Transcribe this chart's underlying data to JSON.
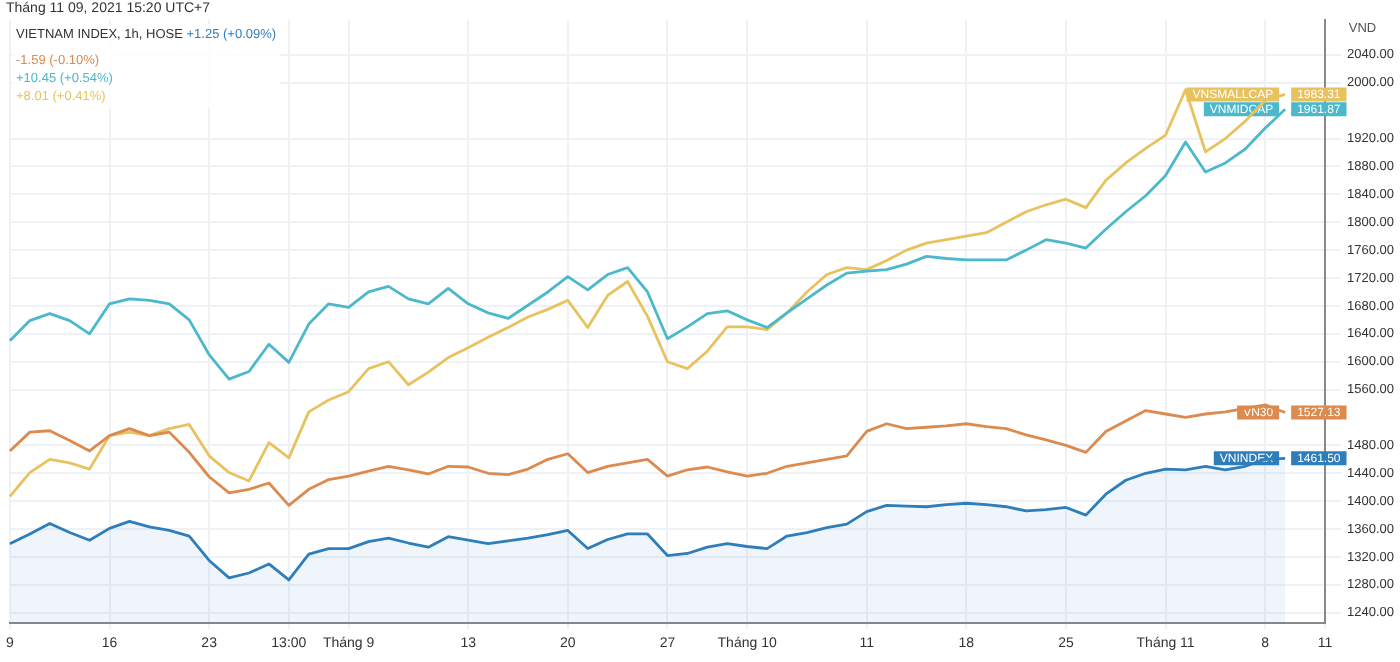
{
  "chart_data": {
    "type": "line",
    "title": "VIETNAM INDEX, 1h, HOSE",
    "ylabel": "VND",
    "annotations": [
      "Tháng 11 09, 2021 15:20 UTC+7",
      "+1.25 (+0.09%)",
      "-1.59 (-0.10%)",
      "+10.45 (+0.54%)",
      "+8.01 (+0.41%)"
    ],
    "categories": [
      "9",
      null,
      null,
      null,
      null,
      "16",
      null,
      null,
      null,
      null,
      "23",
      null,
      null,
      null,
      "13:00",
      null,
      null,
      "Tháng 9",
      null,
      null,
      null,
      null,
      null,
      "13",
      null,
      null,
      null,
      null,
      "20",
      null,
      null,
      null,
      null,
      "27",
      null,
      null,
      null,
      "Tháng 10",
      null,
      null,
      null,
      null,
      null,
      "11",
      null,
      null,
      null,
      null,
      "18",
      null,
      null,
      null,
      null,
      "25",
      null,
      null,
      null,
      null,
      "Tháng 11",
      null,
      null,
      null,
      null,
      "8",
      null,
      null,
      "11"
    ],
    "ylim": [
      1225,
      2090
    ],
    "yticks": [
      {
        "value": 1240,
        "label": "1240.00"
      },
      {
        "value": 1280,
        "label": "1280.00"
      },
      {
        "value": 1320,
        "label": "1320.00"
      },
      {
        "value": 1360,
        "label": "1360.00"
      },
      {
        "value": 1400,
        "label": "1400.00"
      },
      {
        "value": 1440,
        "label": "1440.00"
      },
      {
        "value": 1480,
        "label": "1480.00"
      },
      {
        "value": 1560,
        "label": "1560.00"
      },
      {
        "value": 1600,
        "label": "1600.00"
      },
      {
        "value": 1640,
        "label": "1640.00"
      },
      {
        "value": 1680,
        "label": "1680.00"
      },
      {
        "value": 1720,
        "label": "1720.00"
      },
      {
        "value": 1760,
        "label": "1760.00"
      },
      {
        "value": 1800,
        "label": "1800.00"
      },
      {
        "value": 1840,
        "label": "1840.00"
      },
      {
        "value": 1880,
        "label": "1880.00"
      },
      {
        "value": 1920,
        "label": "1920.00"
      },
      {
        "value": 2000,
        "label": "2000.00"
      },
      {
        "value": 2040,
        "label": "2040.00"
      }
    ],
    "grid": true,
    "legend": "right",
    "marker": "none",
    "line_style": "solid",
    "series": [
      {
        "name": "VNINDEX",
        "type": "area",
        "color": "#2f7ebc",
        "values": [
          1339,
          1353,
          1368,
          1355,
          1344,
          1361,
          1371,
          1363,
          1358,
          1350,
          1315,
          1290,
          1297,
          1310,
          1287,
          1324,
          1332,
          1332,
          1342,
          1347,
          1340,
          1334,
          1349,
          1344,
          1339,
          1343,
          1347,
          1352,
          1358,
          1332,
          1345,
          1353,
          1353,
          1322,
          1325,
          1334,
          1339,
          1335,
          1332,
          1350,
          1355,
          1362,
          1367,
          1385,
          1394,
          1393,
          1392,
          1395,
          1397,
          1395,
          1392,
          1386,
          1388,
          1391,
          1380,
          1410,
          1430,
          1440,
          1446,
          1445,
          1450,
          1445,
          1450,
          1460,
          1461.5,
          null,
          null
        ],
        "value_labels": [
          null,
          null,
          null,
          null,
          null,
          null,
          null,
          null,
          null,
          null,
          null,
          null,
          null,
          null,
          null,
          null,
          null,
          null,
          null,
          null,
          null,
          null,
          null,
          null,
          null,
          null,
          null,
          null,
          null,
          null,
          null,
          null,
          null,
          null,
          null,
          null,
          null,
          null,
          null,
          null,
          null,
          null,
          null,
          null,
          null,
          null,
          null,
          null,
          null,
          null,
          null,
          null,
          null,
          null,
          null,
          null,
          null,
          null,
          null,
          null,
          null,
          null,
          null,
          null,
          "1461.50",
          null,
          null
        ]
      },
      {
        "name": "VN30",
        "color": "#dc8a4e",
        "values": [
          1472,
          1499,
          1501,
          1487,
          1472,
          1494,
          1504,
          1494,
          1499,
          1470,
          1435,
          1412,
          1417,
          1426,
          1394,
          1417,
          1431,
          1436,
          1443,
          1450,
          1445,
          1439,
          1450,
          1449,
          1440,
          1438,
          1446,
          1460,
          1468,
          1441,
          1450,
          1455,
          1460,
          1436,
          1445,
          1449,
          1442,
          1436,
          1440,
          1450,
          1455,
          1460,
          1465,
          1500,
          1511,
          1504,
          1506,
          1508,
          1511,
          1507,
          1504,
          1495,
          1488,
          1480,
          1470,
          1500,
          1515,
          1530,
          1525,
          1520,
          1525,
          1528,
          1533,
          1538,
          1527.13,
          null,
          null
        ],
        "value_labels": [
          null,
          null,
          null,
          null,
          null,
          null,
          null,
          null,
          null,
          null,
          null,
          null,
          null,
          null,
          null,
          null,
          null,
          null,
          null,
          null,
          null,
          null,
          null,
          null,
          null,
          null,
          null,
          null,
          null,
          null,
          null,
          null,
          null,
          null,
          null,
          null,
          null,
          null,
          null,
          null,
          null,
          null,
          null,
          null,
          null,
          null,
          null,
          null,
          null,
          null,
          null,
          null,
          null,
          null,
          null,
          null,
          null,
          null,
          null,
          null,
          null,
          null,
          null,
          null,
          "1527.13",
          null,
          null
        ]
      },
      {
        "name": "VNMIDCAP",
        "color": "#4bb9cb",
        "values": [
          1630,
          1659,
          1669,
          1659,
          1640,
          1683,
          1690,
          1688,
          1683,
          1660,
          1610,
          1575,
          1586,
          1625,
          1599,
          1654,
          1683,
          1678,
          1700,
          1708,
          1690,
          1683,
          1705,
          1683,
          1670,
          1662,
          1681,
          1700,
          1722,
          1703,
          1725,
          1735,
          1700,
          1633,
          1650,
          1669,
          1673,
          1660,
          1649,
          1670,
          1690,
          1710,
          1727,
          1730,
          1732,
          1740,
          1751,
          1748,
          1746,
          1746,
          1746,
          1760,
          1775,
          1770,
          1763,
          1790,
          1815,
          1838,
          1867,
          1915,
          1872,
          1885,
          1905,
          1935,
          1961.87,
          null,
          null
        ],
        "value_labels": [
          null,
          null,
          null,
          null,
          null,
          null,
          null,
          null,
          null,
          null,
          null,
          null,
          null,
          null,
          null,
          null,
          null,
          null,
          null,
          null,
          null,
          null,
          null,
          null,
          null,
          null,
          null,
          null,
          null,
          null,
          null,
          null,
          null,
          null,
          null,
          null,
          null,
          null,
          null,
          null,
          null,
          null,
          null,
          null,
          null,
          null,
          null,
          null,
          null,
          null,
          null,
          null,
          null,
          null,
          null,
          null,
          null,
          null,
          null,
          null,
          null,
          null,
          null,
          null,
          "1961.87",
          null,
          null
        ]
      },
      {
        "name": "VNSMALLCAP",
        "color": "#e8c25e",
        "values": [
          1407,
          1441,
          1460,
          1455,
          1446,
          1494,
          1499,
          1494,
          1504,
          1510,
          1465,
          1441,
          1429,
          1484,
          1462,
          1528,
          1545,
          1557,
          1590,
          1600,
          1567,
          1585,
          1606,
          1620,
          1635,
          1649,
          1664,
          1675,
          1688,
          1649,
          1695,
          1715,
          1665,
          1600,
          1590,
          1615,
          1650,
          1650,
          1646,
          1670,
          1700,
          1725,
          1735,
          1732,
          1745,
          1760,
          1770,
          1775,
          1780,
          1785,
          1800,
          1815,
          1825,
          1833,
          1821,
          1860,
          1885,
          1906,
          1925,
          1990,
          1901,
          1920,
          1945,
          1975,
          1983.31,
          null,
          null
        ],
        "value_labels": [
          null,
          null,
          null,
          null,
          null,
          null,
          null,
          null,
          null,
          null,
          null,
          null,
          null,
          null,
          null,
          null,
          null,
          null,
          null,
          null,
          null,
          null,
          null,
          null,
          null,
          null,
          null,
          null,
          null,
          null,
          null,
          null,
          null,
          null,
          null,
          null,
          null,
          null,
          null,
          null,
          null,
          null,
          null,
          null,
          null,
          null,
          null,
          null,
          null,
          null,
          null,
          null,
          null,
          null,
          null,
          null,
          null,
          null,
          null,
          null,
          null,
          null,
          null,
          null,
          "1983.31",
          null,
          null
        ]
      }
    ]
  }
}
